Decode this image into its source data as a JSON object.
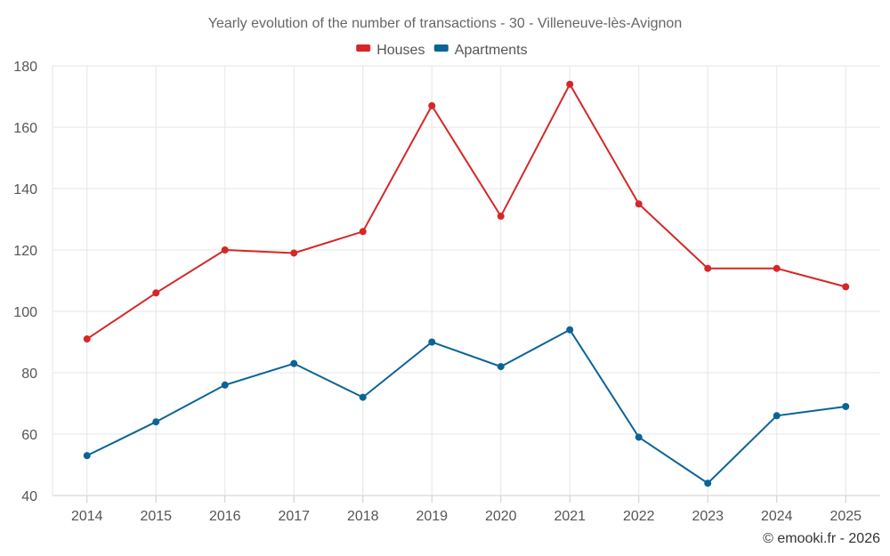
{
  "chart_data": {
    "type": "line",
    "title": "Yearly evolution of the number of transactions - 30 - Villeneuve-lès-Avignon",
    "categories": [
      "2014",
      "2015",
      "2016",
      "2017",
      "2018",
      "2019",
      "2020",
      "2021",
      "2022",
      "2023",
      "2024",
      "2025"
    ],
    "series": [
      {
        "name": "Houses",
        "color": "#d62728",
        "values": [
          91,
          106,
          120,
          119,
          126,
          167,
          131,
          174,
          135,
          114,
          114,
          108
        ]
      },
      {
        "name": "Apartments",
        "color": "#0a6496",
        "values": [
          53,
          64,
          76,
          83,
          72,
          90,
          82,
          94,
          59,
          44,
          66,
          69
        ]
      }
    ],
    "ylim": [
      40,
      180
    ],
    "yticks": [
      40,
      60,
      80,
      100,
      120,
      140,
      160,
      180
    ],
    "grid": true,
    "legend_position": "top-center"
  },
  "credit": "© emooki.fr - 2026"
}
